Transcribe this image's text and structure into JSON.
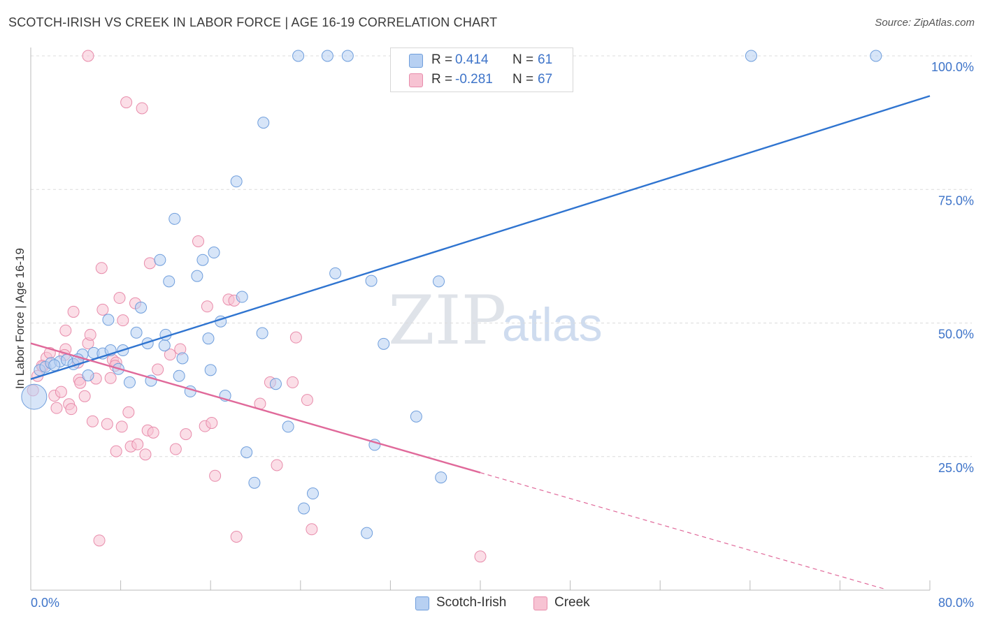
{
  "title": "SCOTCH-IRISH VS CREEK IN LABOR FORCE | AGE 16-19 CORRELATION CHART",
  "source_label": "Source:",
  "source_value": "ZipAtlas.com",
  "watermark_zip": "ZIP",
  "watermark_atlas": "atlas",
  "stats": {
    "rows": [
      {
        "r_label": "R =",
        "r_value": "0.414",
        "n_label": "N =",
        "n_value": "61"
      },
      {
        "r_label": "R =",
        "r_value": "-0.281",
        "n_label": "N =",
        "n_value": "67"
      }
    ]
  },
  "legend": {
    "items": [
      {
        "label": "Scotch-Irish"
      },
      {
        "label": "Creek"
      }
    ]
  },
  "colors": {
    "blue_fill": "#b7d0f2",
    "blue_stroke": "#6f9edc",
    "blue_line": "#2f74d0",
    "pink_fill": "#f7c3d3",
    "pink_stroke": "#e88cab",
    "pink_line": "#e0699a",
    "axis_label": "#3e74c9",
    "grid": "#dcdcdc"
  },
  "chart_data": {
    "type": "scatter",
    "title": "SCOTCH-IRISH VS CREEK IN LABOR FORCE | AGE 16-19 CORRELATION CHART",
    "xlabel": "",
    "ylabel": "In Labor Force | Age 16-19",
    "xlim": [
      0,
      80
    ],
    "ylim": [
      0,
      102
    ],
    "x_tick_labels": [
      "0.0%",
      "80.0%"
    ],
    "y_ticks": [
      25,
      50,
      75,
      100
    ],
    "y_tick_labels": [
      "25.0%",
      "50.0%",
      "75.0%",
      "100.0%"
    ],
    "grid": true,
    "legend_position": "bottom-center",
    "series": [
      {
        "name": "Scotch-Irish",
        "r": 0.414,
        "n": 61,
        "trend": {
          "x0": 0,
          "y0": 39.5,
          "x1": 80,
          "y1": 92.5
        },
        "points": [
          [
            0.3,
            36.2
          ],
          [
            0.8,
            41.2
          ],
          [
            1.3,
            41.8
          ],
          [
            1.8,
            42.5
          ],
          [
            2.6,
            42.8
          ],
          [
            3.2,
            43.1
          ],
          [
            3.8,
            42.3
          ],
          [
            4.6,
            44.1
          ],
          [
            5.1,
            40.2
          ],
          [
            5.6,
            44.4
          ],
          [
            6.4,
            44.3
          ],
          [
            7.1,
            44.9
          ],
          [
            7.8,
            41.4
          ],
          [
            8.2,
            44.9
          ],
          [
            8.8,
            38.9
          ],
          [
            9.4,
            48.2
          ],
          [
            9.8,
            52.9
          ],
          [
            10.4,
            46.2
          ],
          [
            10.7,
            39.2
          ],
          [
            11.5,
            61.8
          ],
          [
            11.9,
            45.8
          ],
          [
            12.3,
            57.8
          ],
          [
            12.8,
            69.5
          ],
          [
            13.2,
            40.1
          ],
          [
            13.5,
            43.4
          ],
          [
            14.2,
            37.2
          ],
          [
            14.8,
            58.8
          ],
          [
            15.3,
            61.8
          ],
          [
            16.0,
            41.2
          ],
          [
            16.3,
            63.2
          ],
          [
            16.9,
            50.3
          ],
          [
            17.3,
            36.4
          ],
          [
            18.3,
            76.5
          ],
          [
            18.8,
            54.9
          ],
          [
            19.2,
            25.8
          ],
          [
            19.9,
            20.1
          ],
          [
            20.6,
            48.1
          ],
          [
            20.7,
            87.5
          ],
          [
            21.8,
            38.6
          ],
          [
            22.9,
            30.6
          ],
          [
            23.8,
            100.0
          ],
          [
            24.3,
            15.3
          ],
          [
            25.1,
            18.1
          ],
          [
            26.4,
            100.0
          ],
          [
            27.1,
            59.3
          ],
          [
            28.2,
            100.0
          ],
          [
            29.9,
            10.7
          ],
          [
            30.3,
            57.9
          ],
          [
            30.6,
            27.2
          ],
          [
            31.4,
            46.1
          ],
          [
            33.1,
            100.0
          ],
          [
            34.3,
            32.5
          ],
          [
            36.3,
            57.8
          ],
          [
            36.5,
            21.1
          ],
          [
            64.1,
            100.0
          ],
          [
            75.2,
            100.0
          ],
          [
            4.2,
            43.2
          ],
          [
            2.1,
            42.1
          ],
          [
            6.9,
            50.6
          ],
          [
            15.8,
            47.1
          ],
          [
            12.0,
            47.8
          ]
        ]
      },
      {
        "name": "Creek",
        "r": -0.281,
        "n": 67,
        "trend": {
          "x0": 0,
          "y0": 46.2,
          "x1": 40,
          "y1": 22.0,
          "x2": 76,
          "y2": 0.2
        },
        "points": [
          [
            0.2,
            37.4
          ],
          [
            0.6,
            40.1
          ],
          [
            1.1,
            41.9
          ],
          [
            1.4,
            43.5
          ],
          [
            1.7,
            44.4
          ],
          [
            2.1,
            36.4
          ],
          [
            2.3,
            34.1
          ],
          [
            2.7,
            37.1
          ],
          [
            3.1,
            45.1
          ],
          [
            3.1,
            48.6
          ],
          [
            3.4,
            34.8
          ],
          [
            3.6,
            33.9
          ],
          [
            3.8,
            52.1
          ],
          [
            4.2,
            42.6
          ],
          [
            4.3,
            39.4
          ],
          [
            4.4,
            38.8
          ],
          [
            4.8,
            36.3
          ],
          [
            5.1,
            46.2
          ],
          [
            5.3,
            47.8
          ],
          [
            5.5,
            31.6
          ],
          [
            5.8,
            39.6
          ],
          [
            6.1,
            9.3
          ],
          [
            6.3,
            60.3
          ],
          [
            6.4,
            52.5
          ],
          [
            6.8,
            31.1
          ],
          [
            7.1,
            39.7
          ],
          [
            7.3,
            43.1
          ],
          [
            7.6,
            42.6
          ],
          [
            7.6,
            26.0
          ],
          [
            7.9,
            54.7
          ],
          [
            8.1,
            30.6
          ],
          [
            8.2,
            50.5
          ],
          [
            8.5,
            91.3
          ],
          [
            8.7,
            33.3
          ],
          [
            8.9,
            26.9
          ],
          [
            9.3,
            53.7
          ],
          [
            9.5,
            27.3
          ],
          [
            9.9,
            90.2
          ],
          [
            10.2,
            25.4
          ],
          [
            10.4,
            29.9
          ],
          [
            10.6,
            61.2
          ],
          [
            10.9,
            29.5
          ],
          [
            11.3,
            41.3
          ],
          [
            12.4,
            44.1
          ],
          [
            12.9,
            26.4
          ],
          [
            13.3,
            45.1
          ],
          [
            13.8,
            29.2
          ],
          [
            14.9,
            65.3
          ],
          [
            15.5,
            30.7
          ],
          [
            15.7,
            53.1
          ],
          [
            16.1,
            31.3
          ],
          [
            16.4,
            21.4
          ],
          [
            17.6,
            54.4
          ],
          [
            18.3,
            10.0
          ],
          [
            20.4,
            34.9
          ],
          [
            21.3,
            38.9
          ],
          [
            21.9,
            23.4
          ],
          [
            23.3,
            38.9
          ],
          [
            23.6,
            47.3
          ],
          [
            24.6,
            35.6
          ],
          [
            25.0,
            11.4
          ],
          [
            40.0,
            6.3
          ],
          [
            5.1,
            100.0
          ],
          [
            1.0,
            42.0
          ],
          [
            7.5,
            42.0
          ],
          [
            18.1,
            54.2
          ],
          [
            3.0,
            44.0
          ]
        ]
      }
    ]
  }
}
